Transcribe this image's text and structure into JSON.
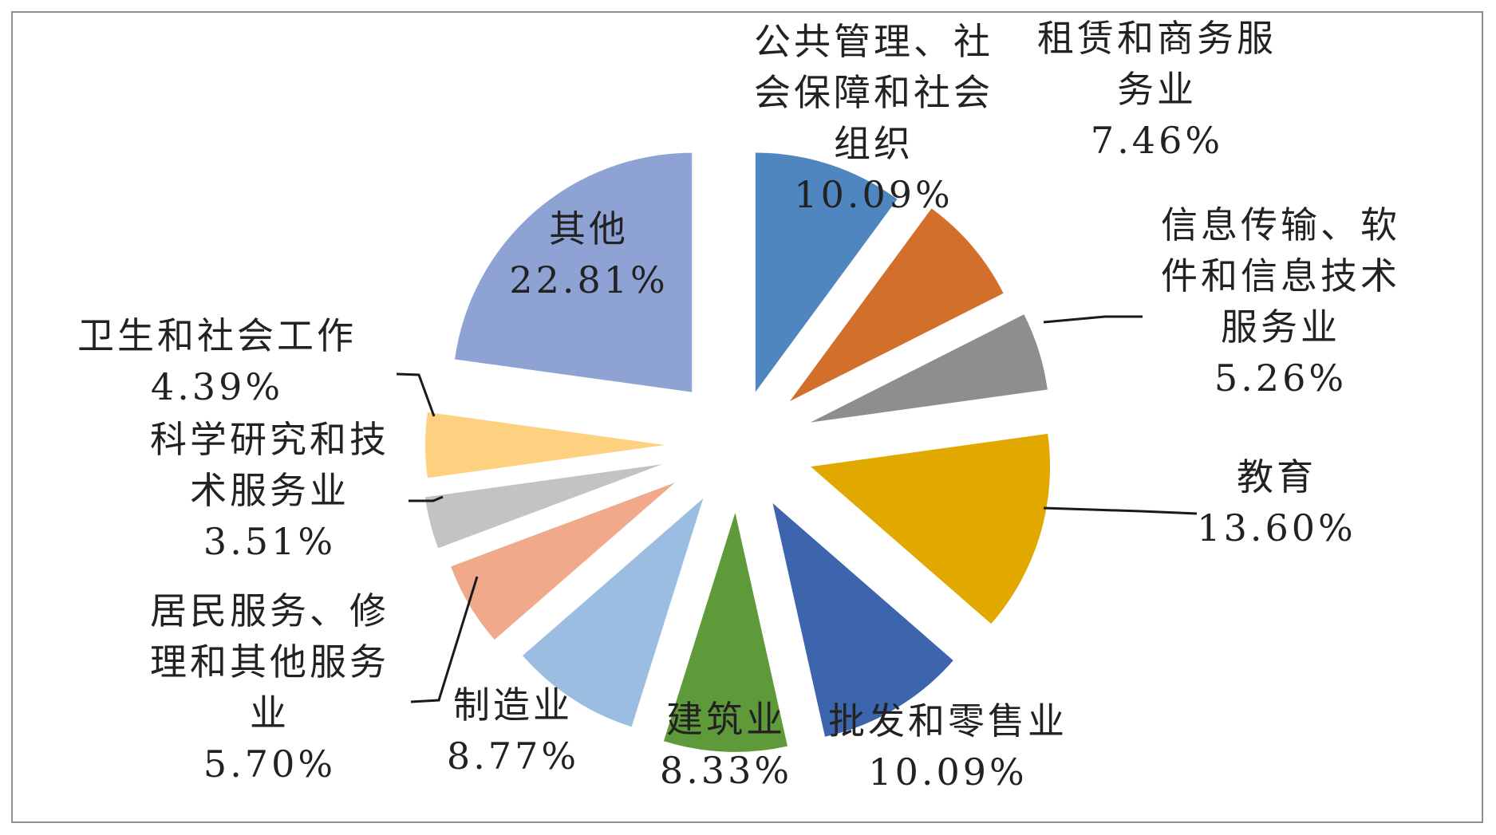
{
  "chart_data": {
    "type": "pie",
    "exploded": true,
    "start": "12 o'clock",
    "direction": "clockwise",
    "title": "",
    "slices": [
      {
        "label": "公共管理、社会保障和社会组织",
        "lines": [
          "公共管理、社",
          "会保障和社会",
          "组织"
        ],
        "value": 10.09,
        "value_text": "10.09%",
        "color": "#4f86c0"
      },
      {
        "label": "租赁和商务服务业",
        "lines": [
          "租赁和商务服",
          "务业"
        ],
        "value": 7.46,
        "value_text": "7.46%",
        "color": "#d26f2b"
      },
      {
        "label": "信息传输、软件和信息技术服务业",
        "lines": [
          "信息传输、软",
          "件和信息技术",
          "服务业"
        ],
        "value": 5.26,
        "value_text": "5.26%",
        "color": "#8e8e8e"
      },
      {
        "label": "教育",
        "lines": [
          "教育"
        ],
        "value": 13.6,
        "value_text": "13.60%",
        "color": "#e1a800"
      },
      {
        "label": "批发和零售业",
        "lines": [
          "批发和零售业"
        ],
        "value": 10.09,
        "value_text": "10.09%",
        "color": "#3d65ad"
      },
      {
        "label": "建筑业",
        "lines": [
          "建筑业"
        ],
        "value": 8.33,
        "value_text": "8.33%",
        "color": "#5e9a3a"
      },
      {
        "label": "制造业",
        "lines": [
          "制造业"
        ],
        "value": 8.77,
        "value_text": "8.77%",
        "color": "#9cbde2"
      },
      {
        "label": "居民服务、修理和其他服务业",
        "lines": [
          "居民服务、修",
          "理和其他服务",
          "业"
        ],
        "value": 5.7,
        "value_text": "5.70%",
        "color": "#f0a98a"
      },
      {
        "label": "科学研究和技术服务业",
        "lines": [
          "科学研究和技",
          "术服务业"
        ],
        "value": 3.51,
        "value_text": "3.51%",
        "color": "#c3c3c3"
      },
      {
        "label": "卫生和社会工作",
        "lines": [
          "卫生和社会工作"
        ],
        "value": 4.39,
        "value_text": "4.39%",
        "color": "#fdd17f"
      },
      {
        "label": "其他",
        "lines": [
          "其他"
        ],
        "value": 22.81,
        "value_text": "22.81%",
        "color": "#8ea2d4"
      }
    ]
  }
}
